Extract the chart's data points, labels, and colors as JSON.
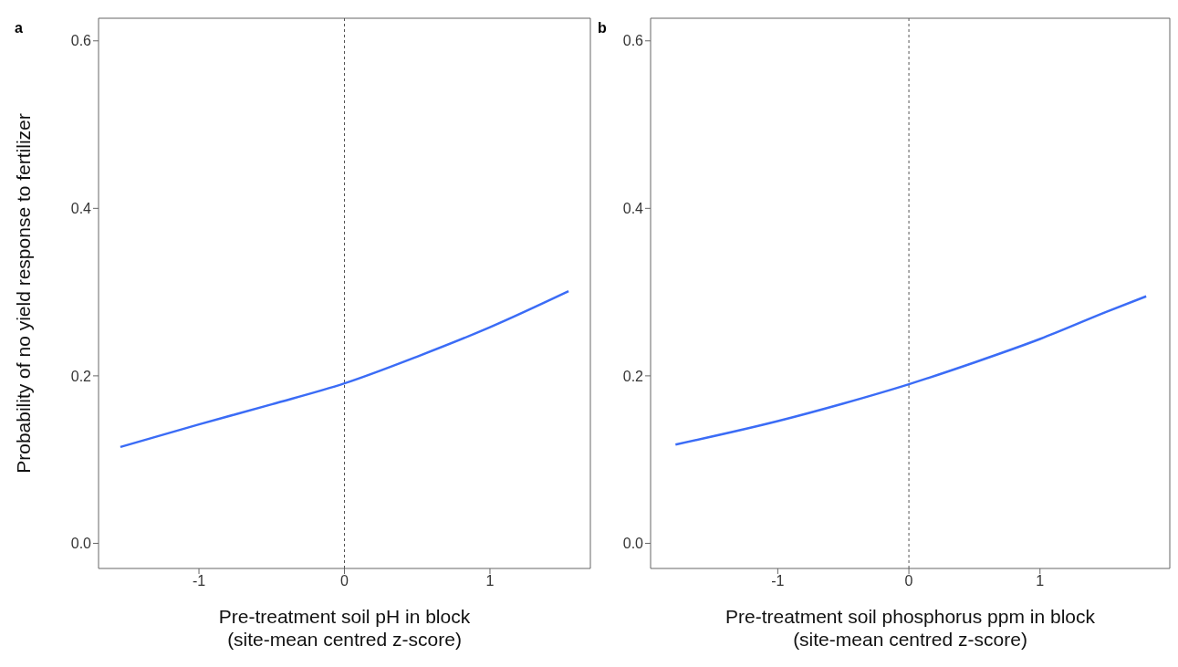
{
  "chart_data": [
    {
      "type": "line",
      "title": "a",
      "xlabel": "Pre-treatment soil pH in block\n(site-mean centred z-score)",
      "ylabel": "Probability of no yield response to fertilizer",
      "series": [
        {
          "color": "#3b6cf6",
          "x": [
            -1.54,
            -1,
            -0.5,
            0,
            0.5,
            1,
            1.54
          ],
          "values": [
            0.115,
            0.142,
            0.166,
            0.191,
            0.223,
            0.258,
            0.301
          ]
        }
      ],
      "xlim": [
        -1.69,
        1.69
      ],
      "xticks": [
        -1,
        0,
        1
      ],
      "ylim": [
        -0.03,
        0.627
      ],
      "yticks": [
        {
          "value": 0,
          "label": "0.0"
        },
        0.2,
        0.4,
        0.6
      ],
      "ref_lines": [
        {
          "axis": "x",
          "value": 0,
          "color": "#555555",
          "line_style": "dashed"
        }
      ],
      "grid": false,
      "legend": false,
      "marker": "none"
    },
    {
      "type": "line",
      "title": "b",
      "xlabel": "Pre-treatment soil phosphorus ppm in block\n(site-mean centred z-score)",
      "series": [
        {
          "color": "#3b6cf6",
          "x": [
            -1.78,
            -1,
            -0.5,
            0,
            0.5,
            1,
            1.5,
            1.81
          ],
          "values": [
            0.118,
            0.146,
            0.167,
            0.19,
            0.216,
            0.244,
            0.276,
            0.295
          ]
        }
      ],
      "xlim": [
        -1.97,
        1.99
      ],
      "xticks": [
        -1,
        0,
        1
      ],
      "ylim": [
        -0.03,
        0.627
      ],
      "yticks": [
        {
          "value": 0,
          "label": "0.0"
        },
        0.2,
        0.4,
        0.6
      ],
      "ref_lines": [
        {
          "axis": "x",
          "value": 0,
          "color": "#555555",
          "line_style": "dashed"
        }
      ],
      "grid": false,
      "legend": false,
      "marker": "none"
    }
  ]
}
